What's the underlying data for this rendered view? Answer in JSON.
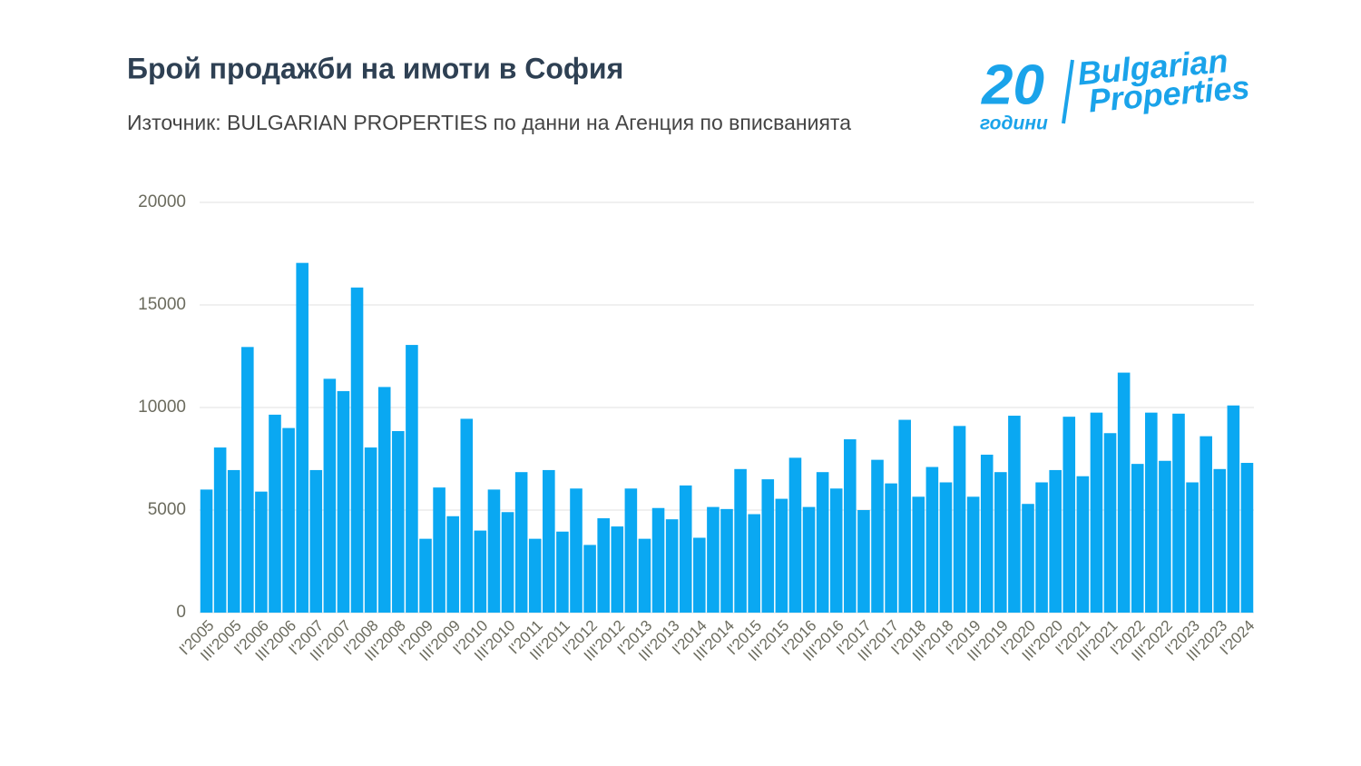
{
  "chart_data": {
    "type": "bar",
    "title": "Брой продажби на имоти в София",
    "subtitle": "Източник: BULGARIAN PROPERTIES по данни на Агенция по вписванията",
    "logo": {
      "number": "20",
      "years": "години",
      "line1": "Bulgarian",
      "line2": "Properties"
    },
    "color": "#0aa8f2",
    "grid": true,
    "ylim": [
      0,
      20000
    ],
    "yticks": [
      0,
      5000,
      10000,
      15000,
      20000
    ],
    "categories": [
      "I'2005",
      null,
      "III'2005",
      null,
      "I'2006",
      null,
      "III'2006",
      null,
      "I'2007",
      null,
      "III'2007",
      null,
      "I'2008",
      null,
      "III'2008",
      null,
      "I'2009",
      null,
      "III'2009",
      null,
      "I'2010",
      null,
      "III'2010",
      null,
      "I'2011",
      null,
      "III'2011",
      null,
      "I'2012",
      null,
      "III'2012",
      null,
      "I'2013",
      null,
      "III'2013",
      null,
      "I'2014",
      null,
      "III'2014",
      null,
      "I'2015",
      null,
      "III'2015",
      null,
      "I'2016",
      null,
      "III'2016",
      null,
      "I'2017",
      null,
      "III'2017",
      null,
      "I'2018",
      null,
      "III'2018",
      null,
      "I'2019",
      null,
      "III'2019",
      null,
      "I'2020",
      null,
      "III'2020",
      null,
      "I'2021",
      null,
      "III'2021",
      null,
      "I'2022",
      null,
      "III'2022",
      null,
      "I'2023",
      null,
      "III'2023",
      null,
      "I'2024"
    ],
    "values": [
      6000,
      8050,
      6950,
      12950,
      5900,
      9650,
      9000,
      17050,
      6950,
      11400,
      10800,
      15850,
      8050,
      11000,
      8850,
      13050,
      3600,
      6100,
      4700,
      9450,
      4000,
      6000,
      4900,
      6850,
      3600,
      6950,
      3950,
      6050,
      3300,
      4600,
      4200,
      6050,
      3600,
      5100,
      4550,
      6200,
      3650,
      5150,
      5050,
      7000,
      4800,
      6500,
      5550,
      7550,
      5150,
      6850,
      6050,
      8450,
      5000,
      7450,
      6300,
      9400,
      5650,
      7100,
      6350,
      9100,
      5650,
      7700,
      6850,
      9600,
      5300,
      6350,
      6950,
      9550,
      6650,
      9750,
      8750,
      11700,
      7250,
      9750,
      7400,
      9700,
      6350,
      8600,
      7000,
      10100,
      7300
    ]
  }
}
